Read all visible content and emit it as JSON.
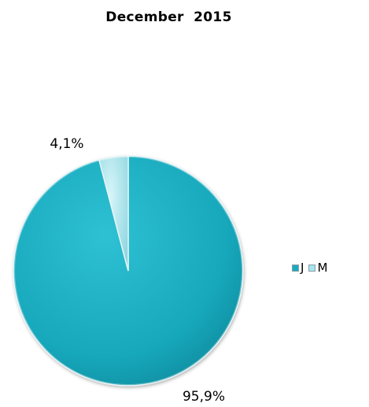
{
  "chart_data": {
    "type": "pie",
    "title": "December  2015",
    "categories": [
      "J",
      "M"
    ],
    "values": [
      95.9,
      4.1
    ],
    "data_labels": [
      "95,9%",
      "4,1%"
    ],
    "colors": [
      "#1aabbf",
      "#a7e4ec"
    ],
    "legend": {
      "placement": "right",
      "entries": [
        "J",
        "M"
      ]
    }
  }
}
